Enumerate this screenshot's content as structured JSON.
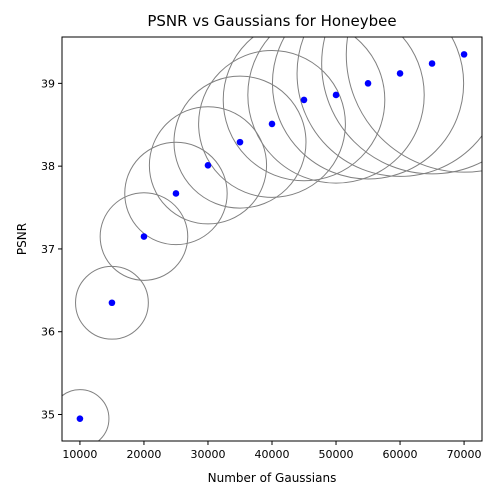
{
  "chart_data": {
    "type": "scatter",
    "title": "PSNR vs Gaussians for Honeybee",
    "xlabel": "Number of Gaussians",
    "ylabel": "PSNR",
    "xlim": [
      7200,
      72800
    ],
    "ylim": [
      34.68,
      39.56
    ],
    "xticks": [
      10000,
      20000,
      30000,
      40000,
      50000,
      60000,
      70000
    ],
    "yticks": [
      35,
      36,
      37,
      38,
      39
    ],
    "x": [
      10000,
      15000,
      20000,
      25000,
      30000,
      35000,
      40000,
      45000,
      50000,
      55000,
      60000,
      65000,
      70000
    ],
    "y": [
      34.95,
      36.35,
      37.15,
      37.67,
      38.01,
      38.29,
      38.51,
      38.8,
      38.86,
      39.0,
      39.12,
      39.24,
      39.35
    ],
    "point_color": "#0000ff",
    "ring_color": "#808080",
    "grid": false,
    "legend": "none"
  }
}
